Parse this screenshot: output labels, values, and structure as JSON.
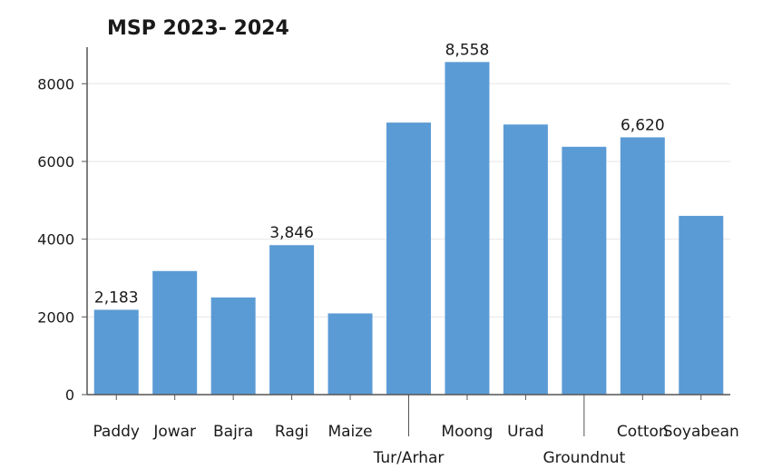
{
  "chart_data": {
    "type": "bar",
    "title": "MSP 2023- 2024",
    "xlabel": "",
    "ylabel": "",
    "categories": [
      "Paddy",
      "Jowar",
      "Bajra",
      "Ragi",
      "Maize",
      "Tur/Arhar",
      "Moong",
      "Urad",
      "Groundnut",
      "Cotton",
      "Soyabean"
    ],
    "values": [
      2183,
      3180,
      2500,
      3846,
      2090,
      7000,
      8558,
      6950,
      6377,
      6620,
      4600
    ],
    "data_labels": [
      {
        "index": 0,
        "text": "2,183"
      },
      {
        "index": 3,
        "text": "3,846"
      },
      {
        "index": 6,
        "text": "8,558"
      },
      {
        "index": 9,
        "text": "6,620"
      }
    ],
    "yticks": [
      0,
      2000,
      4000,
      6000,
      8000
    ],
    "ylim": [
      0,
      8800
    ],
    "grid": true,
    "legend": "none",
    "bar_color": "#5b9bd5"
  }
}
